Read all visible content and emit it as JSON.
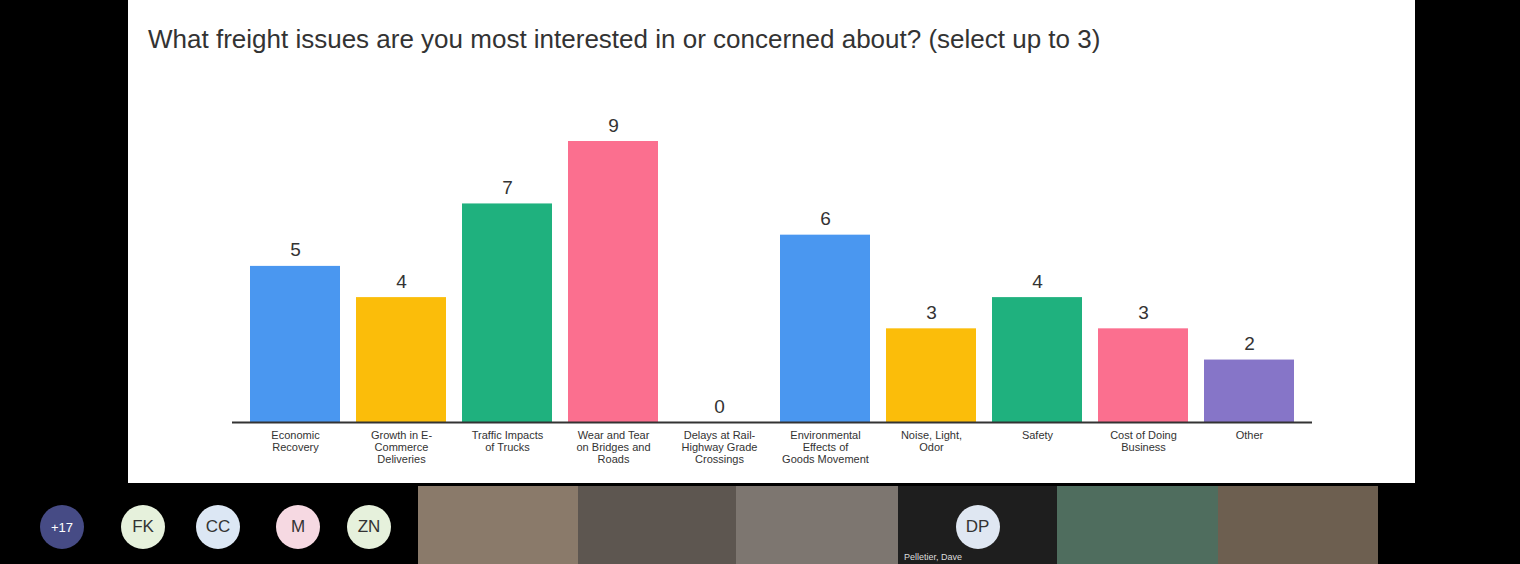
{
  "chart_data": {
    "type": "bar",
    "title": "What freight issues are you most interested in or concerned about? (select up to 3)",
    "categories": [
      "Economic Recovery",
      "Growth in E-Commerce Deliveries",
      "Traffic Impacts of Trucks",
      "Wear and Tear on Bridges and Roads",
      "Delays at Rail-Highway Grade Crossings",
      "Environmental Effects of Goods Movement",
      "Noise, Light, Odor",
      "Safety",
      "Cost of Doing Business",
      "Other"
    ],
    "values": [
      5,
      4,
      7,
      9,
      0,
      6,
      3,
      4,
      3,
      2
    ],
    "colors": [
      "#4a97f0",
      "#fbbd0a",
      "#1fb17e",
      "#fb6f8f",
      "#4a97f0",
      "#4a97f0",
      "#fbbd0a",
      "#1fb17e",
      "#fb6f8f",
      "#8675c8"
    ],
    "ylim": [
      0,
      9
    ],
    "grid": false,
    "data_labels": true,
    "tick_labels": "x"
  },
  "call_strip": {
    "overflow": "+17",
    "avatars": [
      {
        "initials": "FK",
        "color": "#e6f1dc"
      },
      {
        "initials": "CC",
        "color": "#dce7f4"
      },
      {
        "initials": "M",
        "color": "#f6d9e2"
      },
      {
        "initials": "ZN",
        "color": "#e6f1dc"
      }
    ],
    "named_tile": {
      "initials": "DP",
      "name": "Pelletier, Dave"
    }
  }
}
